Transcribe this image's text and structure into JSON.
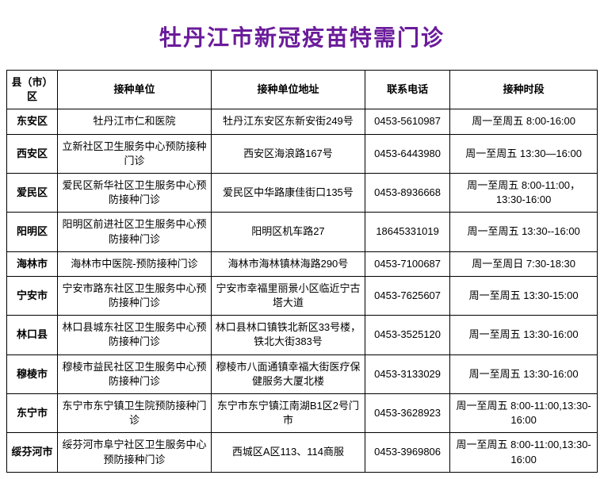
{
  "title": "牡丹江市新冠疫苗特需门诊",
  "columns": {
    "district": "县（市）区",
    "unit": "接种单位",
    "address": "接种单位地址",
    "phone": "联系电话",
    "time": "接种时段"
  },
  "rows": [
    {
      "district": "东安区",
      "unit": "牡丹江市仁和医院",
      "address": "牡丹江东安区东新安街249号",
      "phone": "0453-5610987",
      "time": "周一至周五 8:00-16:00"
    },
    {
      "district": "西安区",
      "unit": "立新社区卫生服务中心预防接种门诊",
      "address": "西安区海浪路167号",
      "phone": "0453-6443980",
      "time": "周一至周五 13:30—16:00"
    },
    {
      "district": "爱民区",
      "unit": "爱民区新华社区卫生服务中心预防接种门诊",
      "address": "爱民区中华路康佳街口135号",
      "phone": "0453-8936668",
      "time": "周一至周五 8:00-11:00，13:30-16:00"
    },
    {
      "district": "阳明区",
      "unit": "阳明区前进社区卫生服务中心预防接种门诊",
      "address": "阳明区机车路27",
      "phone": "18645331019",
      "time": "周一至周五 13:30--16:00"
    },
    {
      "district": "海林市",
      "unit": "海林市中医院-预防接种门诊",
      "address": "海林市海林镇林海路290号",
      "phone": "0453-7100687",
      "time": "周一至周日 7:30-18:30"
    },
    {
      "district": "宁安市",
      "unit": "宁安市路东社区卫生服务中心预防接种门诊",
      "address": "宁安市幸福里丽景小区临近宁古塔大道",
      "phone": "0453-7625607",
      "time": "周一至周五 13:30-15:00"
    },
    {
      "district": "林口县",
      "unit": "林口县城东社区卫生服务中心预防接种门诊",
      "address": "林口县林口镇铁北新区33号楼，铁北大街383号",
      "phone": "0453-3525120",
      "time": "周一至周五 13:30-16:00"
    },
    {
      "district": "穆棱市",
      "unit": "穆棱市益民社区卫生服务中心预防接种门诊",
      "address": "穆棱市八面通镇幸福大街医疗保健服务大厦北楼",
      "phone": "0453-3133029",
      "time": "周一至周五 13:30-16:00"
    },
    {
      "district": "东宁市",
      "unit": "东宁市东宁镇卫生院预防接种门诊",
      "address": "东宁市东宁镇江南湖B1区2号门市",
      "phone": "0453-3628923",
      "time": "周一至周五 8:00-11:00,13:30-16:00"
    },
    {
      "district": "绥芬河市",
      "unit": "绥芬河市阜宁社区卫生服务中心预防接种门诊",
      "address": "西城区A区113、114商服",
      "phone": "0453-3969806",
      "time": "周一至周五 8:00-11:00,13:30-16:00"
    }
  ],
  "colors": {
    "title": "#6a1b9a",
    "border": "#000000",
    "background": "#ffffff",
    "text": "#000000"
  }
}
